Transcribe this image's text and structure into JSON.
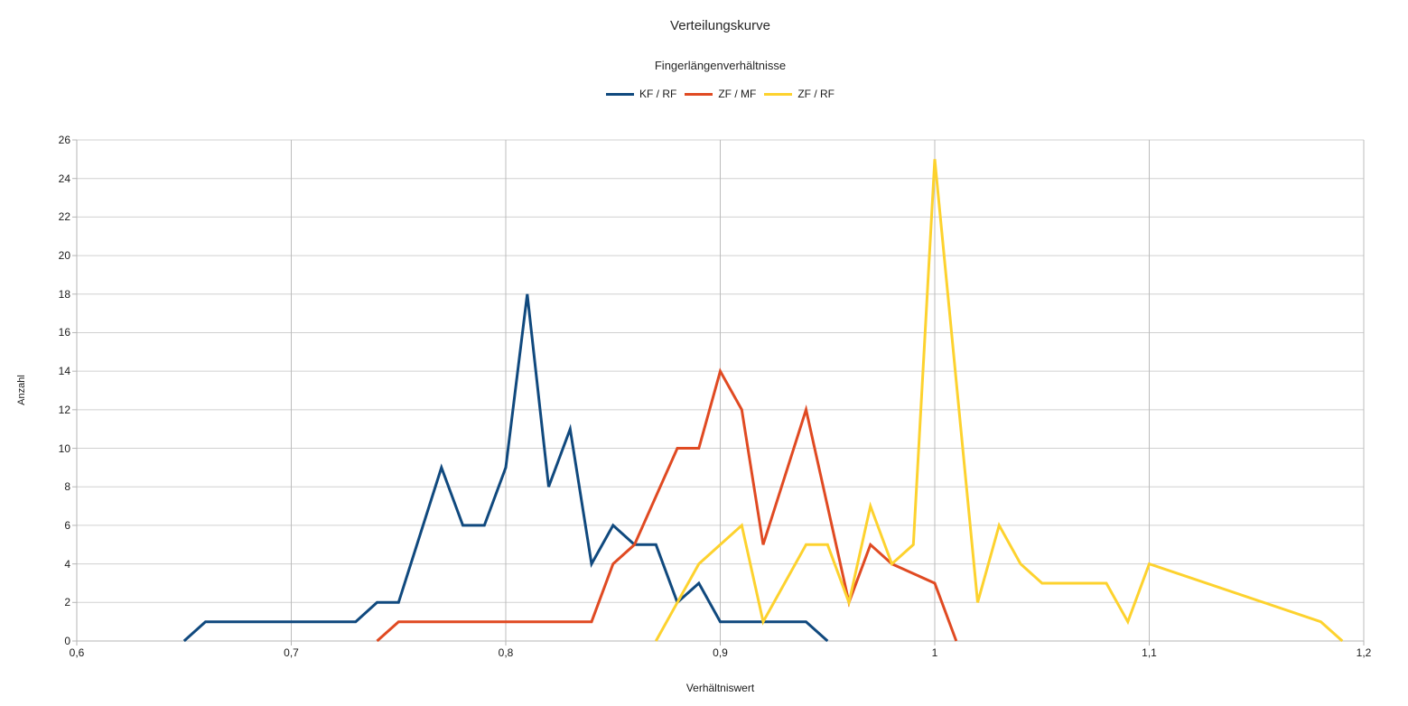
{
  "chart": {
    "title": "Verteilungskurve",
    "subtitle": "Fingerlängenverhältnisse",
    "x_axis_title": "Verhältniswert",
    "y_axis_title": "Anzahl"
  },
  "legend": {
    "position": "top",
    "items": [
      {
        "label": "KF / RF",
        "color": "#10497e"
      },
      {
        "label": "ZF / MF",
        "color": "#e04a22"
      },
      {
        "label": "ZF / RF",
        "color": "#fdd22e"
      }
    ]
  },
  "chart_data": {
    "type": "line",
    "title": "Verteilungskurve",
    "subtitle": "Fingerlängenverhältnisse",
    "xlabel": "Verhältniswert",
    "ylabel": "Anzahl",
    "xlim": [
      0.6,
      1.2
    ],
    "ylim": [
      0,
      26
    ],
    "grid": true,
    "legend_position": "top",
    "grid_color": "#d0d0d0",
    "vgrid_color": "#bcbcbc",
    "axis_color": "#b5b5b5",
    "line_width": 3,
    "y_ticks": [
      0,
      2,
      4,
      6,
      8,
      10,
      12,
      14,
      16,
      18,
      20,
      22,
      24,
      26
    ],
    "x_ticks": [
      {
        "value": 0.6,
        "label": "0,6"
      },
      {
        "value": 0.7,
        "label": "0,7"
      },
      {
        "value": 0.8,
        "label": "0,8"
      },
      {
        "value": 0.9,
        "label": "0,9"
      },
      {
        "value": 1.0,
        "label": "1"
      },
      {
        "value": 1.1,
        "label": "1,1"
      },
      {
        "value": 1.2,
        "label": "1,2"
      }
    ],
    "series": [
      {
        "id": "kf-rf",
        "name": "KF / RF",
        "color": "#10497e",
        "points": [
          [
            0.65,
            0
          ],
          [
            0.66,
            1
          ],
          [
            0.73,
            1
          ],
          [
            0.74,
            2
          ],
          [
            0.75,
            2
          ],
          [
            0.77,
            9
          ],
          [
            0.78,
            6
          ],
          [
            0.79,
            6
          ],
          [
            0.8,
            9
          ],
          [
            0.81,
            18
          ],
          [
            0.82,
            8
          ],
          [
            0.83,
            11
          ],
          [
            0.84,
            4
          ],
          [
            0.85,
            6
          ],
          [
            0.86,
            5
          ],
          [
            0.87,
            5
          ],
          [
            0.88,
            2
          ],
          [
            0.89,
            3
          ],
          [
            0.9,
            1
          ],
          [
            0.94,
            1
          ],
          [
            0.95,
            0
          ]
        ]
      },
      {
        "id": "zf-mf",
        "name": "ZF / MF",
        "color": "#e04a22",
        "points": [
          [
            0.74,
            0
          ],
          [
            0.75,
            1
          ],
          [
            0.84,
            1
          ],
          [
            0.85,
            4
          ],
          [
            0.86,
            5
          ],
          [
            0.88,
            10
          ],
          [
            0.89,
            10
          ],
          [
            0.9,
            14
          ],
          [
            0.91,
            12
          ],
          [
            0.92,
            5
          ],
          [
            0.94,
            12
          ],
          [
            0.96,
            2
          ],
          [
            0.97,
            5
          ],
          [
            0.98,
            4
          ],
          [
            1.0,
            3
          ],
          [
            1.01,
            0
          ]
        ]
      },
      {
        "id": "zf-rf",
        "name": "ZF / RF",
        "color": "#fdd22e",
        "points": [
          [
            0.87,
            0
          ],
          [
            0.88,
            2
          ],
          [
            0.89,
            4
          ],
          [
            0.9,
            5
          ],
          [
            0.91,
            6
          ],
          [
            0.92,
            1
          ],
          [
            0.94,
            5
          ],
          [
            0.95,
            5
          ],
          [
            0.96,
            2
          ],
          [
            0.97,
            7
          ],
          [
            0.98,
            4
          ],
          [
            0.99,
            5
          ],
          [
            1.0,
            25
          ],
          [
            1.02,
            2
          ],
          [
            1.03,
            6
          ],
          [
            1.04,
            4
          ],
          [
            1.05,
            3
          ],
          [
            1.08,
            3
          ],
          [
            1.09,
            1
          ],
          [
            1.1,
            4
          ],
          [
            1.18,
            1
          ],
          [
            1.19,
            0
          ]
        ]
      }
    ]
  }
}
